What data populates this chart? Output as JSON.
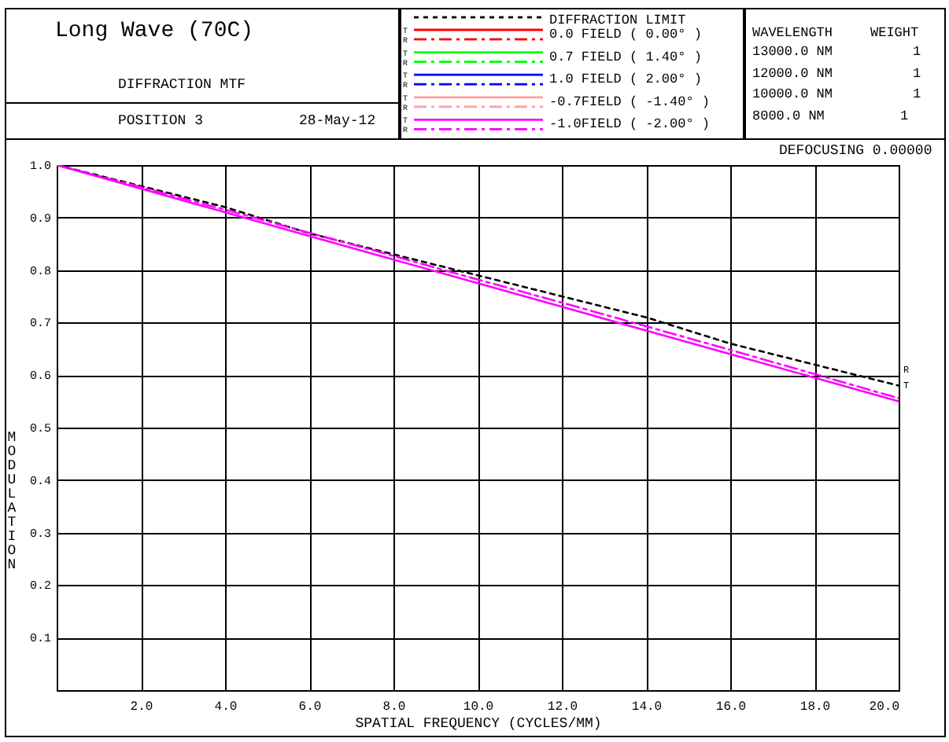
{
  "chart_data": {
    "type": "line",
    "title": "Long Wave  (70C)",
    "subtitle": "DIFFRACTION MTF",
    "xlabel": "SPATIAL FREQUENCY (CYCLES/MM)",
    "ylabel": "MODULATION",
    "x": [
      0,
      2,
      4,
      6,
      8,
      10,
      12,
      14,
      16,
      18,
      20
    ],
    "series": [
      {
        "name": "DIFFRACTION LIMIT",
        "color": "#000000",
        "line_style": "dotted",
        "values": [
          1.0,
          0.96,
          0.92,
          0.87,
          0.83,
          0.79,
          0.75,
          0.71,
          0.66,
          0.62,
          0.58
        ]
      },
      {
        "name": "0.0 FIELD ( 0.00° )",
        "color": "#ff0000",
        "line_style": "solid",
        "values": [
          null,
          null,
          null,
          null,
          null,
          null,
          null,
          null,
          null,
          null,
          null
        ]
      },
      {
        "color": "#ff0000",
        "line_style": "dashed",
        "values": [
          null,
          null,
          null,
          null,
          null,
          null,
          null,
          null,
          null,
          null,
          null
        ]
      },
      {
        "name": "0.7 FIELD ( 1.40° )",
        "color": "#00ff00",
        "line_style": "solid",
        "values": [
          null,
          null,
          null,
          null,
          null,
          null,
          null,
          null,
          null,
          null,
          null
        ]
      },
      {
        "color": "#00ff00",
        "line_style": "dashed",
        "values": [
          null,
          null,
          null,
          null,
          null,
          null,
          null,
          null,
          null,
          null,
          null
        ]
      },
      {
        "name": "1.0 FIELD ( 2.00° )",
        "color": "#0000ff",
        "line_style": "solid",
        "values": [
          null,
          null,
          null,
          null,
          null,
          null,
          null,
          null,
          null,
          null,
          null
        ]
      },
      {
        "color": "#0000ff",
        "line_style": "dashed",
        "values": [
          null,
          null,
          null,
          null,
          null,
          null,
          null,
          null,
          null,
          null,
          null
        ]
      },
      {
        "name": "-0.7FIELD ( -1.40° )",
        "color": "#ffa0a0",
        "line_style": "solid",
        "values": [
          null,
          null,
          null,
          null,
          null,
          null,
          null,
          null,
          null,
          null,
          null
        ]
      },
      {
        "color": "#ffa0a0",
        "line_style": "dashed",
        "values": [
          null,
          null,
          null,
          null,
          null,
          null,
          null,
          null,
          null,
          null,
          null
        ]
      },
      {
        "name": "-1.0FIELD ( -2.00° )",
        "color": "#ff00ff",
        "line_style": "solid",
        "values": [
          1.0,
          0.955,
          0.91,
          0.865,
          0.82,
          0.775,
          0.73,
          0.685,
          0.64,
          0.595,
          0.55
        ]
      },
      {
        "color": "#ff00ff",
        "line_style": "dashed",
        "values": [
          1.0,
          0.958,
          0.915,
          0.871,
          0.827,
          0.782,
          0.738,
          0.693,
          0.648,
          0.602,
          0.556
        ]
      }
    ],
    "xlim": [
      0,
      20
    ],
    "ylim": [
      0,
      1
    ],
    "xticks": [
      {
        "value": 2,
        "label": "2.0"
      },
      {
        "value": 4,
        "label": "4.0"
      },
      {
        "value": 6,
        "label": "6.0"
      },
      {
        "value": 8,
        "label": "8.0"
      },
      {
        "value": 10,
        "label": "10.0"
      },
      {
        "value": 12,
        "label": "12.0"
      },
      {
        "value": 14,
        "label": "14.0"
      },
      {
        "value": 16,
        "label": "16.0"
      },
      {
        "value": 18,
        "label": "18.0"
      },
      {
        "value": 20,
        "label": "20.0"
      }
    ],
    "yticks": [
      0.1,
      0.2,
      0.3,
      0.4,
      0.5,
      0.6,
      0.7,
      0.8,
      0.9,
      {
        "value": 1,
        "label": "1.0"
      }
    ],
    "grid": true,
    "legend": "top",
    "annotations": [
      "R",
      "T",
      "POSITION 3",
      "28-May-12",
      "DEFOCUSING 0.00000",
      "WAVELENGTH",
      "WEIGHT",
      "13000.0 NM",
      "1",
      "12000.0 NM",
      "1",
      "10000.0 NM",
      "1",
      "8000.0 NM",
      "1"
    ]
  }
}
